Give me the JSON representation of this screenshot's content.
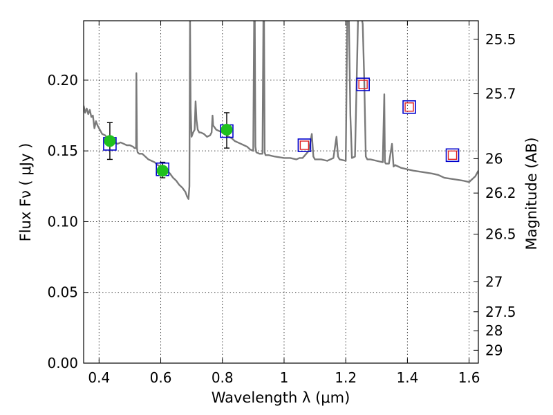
{
  "chart_data": {
    "type": "scatter",
    "xlabel": "Wavelength  λ (μm)",
    "ylabel": "Flux  Fν  ( μJy )",
    "y2label": "Magnitude (AB)",
    "xlim": [
      0.35,
      1.63
    ],
    "ylim": [
      0.0,
      0.242
    ],
    "x_ticks": [
      "0.4",
      "0.6",
      "0.8",
      "1",
      "1.2",
      "1.4",
      "1.6"
    ],
    "y_ticks": [
      "0.00",
      "0.05",
      "0.10",
      "0.15",
      "0.20"
    ],
    "magnitude_ticks": [
      {
        "label": "25.5",
        "flux": 0.2289
      },
      {
        "label": "25.7",
        "flux": 0.1904
      },
      {
        "label": "26",
        "flux": 0.1445
      },
      {
        "label": "26.2",
        "flux": 0.1202
      },
      {
        "label": "26.5",
        "flux": 0.0912
      },
      {
        "label": "27",
        "flux": 0.0575
      },
      {
        "label": "27.5",
        "flux": 0.0363
      },
      {
        "label": "28",
        "flux": 0.0229
      },
      {
        "label": "29",
        "flux": 0.0091
      }
    ],
    "grid": true,
    "colors": {
      "model": "#7a7a7a",
      "observed": "#1fc01f",
      "model_box": "#0000cc",
      "upper_limit": "#e02020",
      "error": "#000000"
    },
    "model_spectrum": {
      "x": [
        0.35,
        0.355,
        0.36,
        0.365,
        0.37,
        0.375,
        0.38,
        0.385,
        0.39,
        0.395,
        0.4,
        0.41,
        0.42,
        0.43,
        0.44,
        0.45,
        0.46,
        0.47,
        0.48,
        0.49,
        0.5,
        0.51,
        0.515,
        0.52,
        0.521,
        0.523,
        0.525,
        0.53,
        0.54,
        0.55,
        0.56,
        0.57,
        0.58,
        0.59,
        0.6,
        0.61,
        0.62,
        0.63,
        0.64,
        0.65,
        0.66,
        0.67,
        0.68,
        0.685,
        0.69,
        0.693,
        0.695,
        0.697,
        0.7,
        0.705,
        0.71,
        0.713,
        0.716,
        0.72,
        0.725,
        0.73,
        0.74,
        0.75,
        0.76,
        0.765,
        0.768,
        0.77,
        0.78,
        0.79,
        0.8,
        0.81,
        0.82,
        0.83,
        0.84,
        0.85,
        0.86,
        0.87,
        0.88,
        0.89,
        0.9,
        0.903,
        0.905,
        0.907,
        0.91,
        0.92,
        0.93,
        0.933,
        0.935,
        0.937,
        0.94,
        0.95,
        0.97,
        1.0,
        1.02,
        1.04,
        1.05,
        1.06,
        1.08,
        1.09,
        1.095,
        1.1,
        1.12,
        1.14,
        1.16,
        1.17,
        1.175,
        1.18,
        1.2,
        1.205,
        1.21,
        1.215,
        1.22,
        1.23,
        1.24,
        1.25,
        1.255,
        1.26,
        1.265,
        1.27,
        1.28,
        1.3,
        1.32,
        1.325,
        1.327,
        1.33,
        1.34,
        1.35,
        1.355,
        1.36,
        1.38,
        1.4,
        1.42,
        1.45,
        1.48,
        1.5,
        1.52,
        1.55,
        1.58,
        1.6,
        1.62,
        1.63
      ],
      "y": [
        0.182,
        0.177,
        0.18,
        0.176,
        0.179,
        0.174,
        0.175,
        0.166,
        0.171,
        0.168,
        0.166,
        0.162,
        0.161,
        0.158,
        0.157,
        0.156,
        0.155,
        0.156,
        0.155,
        0.154,
        0.154,
        0.153,
        0.152,
        0.152,
        0.205,
        0.152,
        0.149,
        0.148,
        0.148,
        0.146,
        0.144,
        0.143,
        0.142,
        0.14,
        0.139,
        0.138,
        0.136,
        0.134,
        0.131,
        0.129,
        0.126,
        0.124,
        0.121,
        0.118,
        0.116,
        0.125,
        0.245,
        0.18,
        0.16,
        0.163,
        0.165,
        0.185,
        0.172,
        0.165,
        0.163,
        0.163,
        0.162,
        0.16,
        0.161,
        0.163,
        0.175,
        0.168,
        0.165,
        0.164,
        0.163,
        0.162,
        0.16,
        0.159,
        0.157,
        0.156,
        0.155,
        0.154,
        0.153,
        0.151,
        0.15,
        0.245,
        0.245,
        0.153,
        0.149,
        0.148,
        0.148,
        0.245,
        0.245,
        0.149,
        0.147,
        0.147,
        0.146,
        0.145,
        0.145,
        0.144,
        0.145,
        0.145,
        0.15,
        0.162,
        0.146,
        0.144,
        0.144,
        0.143,
        0.145,
        0.16,
        0.146,
        0.144,
        0.143,
        0.245,
        0.245,
        0.175,
        0.145,
        0.146,
        0.245,
        0.245,
        0.24,
        0.2,
        0.146,
        0.144,
        0.144,
        0.143,
        0.142,
        0.19,
        0.142,
        0.141,
        0.141,
        0.155,
        0.139,
        0.14,
        0.138,
        0.137,
        0.136,
        0.135,
        0.134,
        0.133,
        0.131,
        0.13,
        0.129,
        0.128,
        0.132,
        0.136
      ]
    },
    "observed_points": [
      {
        "x": 0.435,
        "y": 0.157,
        "yerr_low": 0.144,
        "yerr_high": 0.17
      },
      {
        "x": 0.606,
        "y": 0.136,
        "yerr_low": 0.131,
        "yerr_high": 0.142
      },
      {
        "x": 0.814,
        "y": 0.165,
        "yerr_low": 0.152,
        "yerr_high": 0.177
      }
    ],
    "model_boxes": [
      {
        "x": 0.435,
        "y": 0.155
      },
      {
        "x": 0.606,
        "y": 0.137
      },
      {
        "x": 0.814,
        "y": 0.164
      },
      {
        "x": 1.066,
        "y": 0.154
      },
      {
        "x": 1.256,
        "y": 0.197
      },
      {
        "x": 1.406,
        "y": 0.181
      },
      {
        "x": 1.546,
        "y": 0.147
      }
    ],
    "upper_limit_points": [
      {
        "x": 1.066,
        "y": 0.154
      },
      {
        "x": 1.256,
        "y": 0.197
      },
      {
        "x": 1.406,
        "y": 0.181
      },
      {
        "x": 1.546,
        "y": 0.147
      }
    ]
  }
}
